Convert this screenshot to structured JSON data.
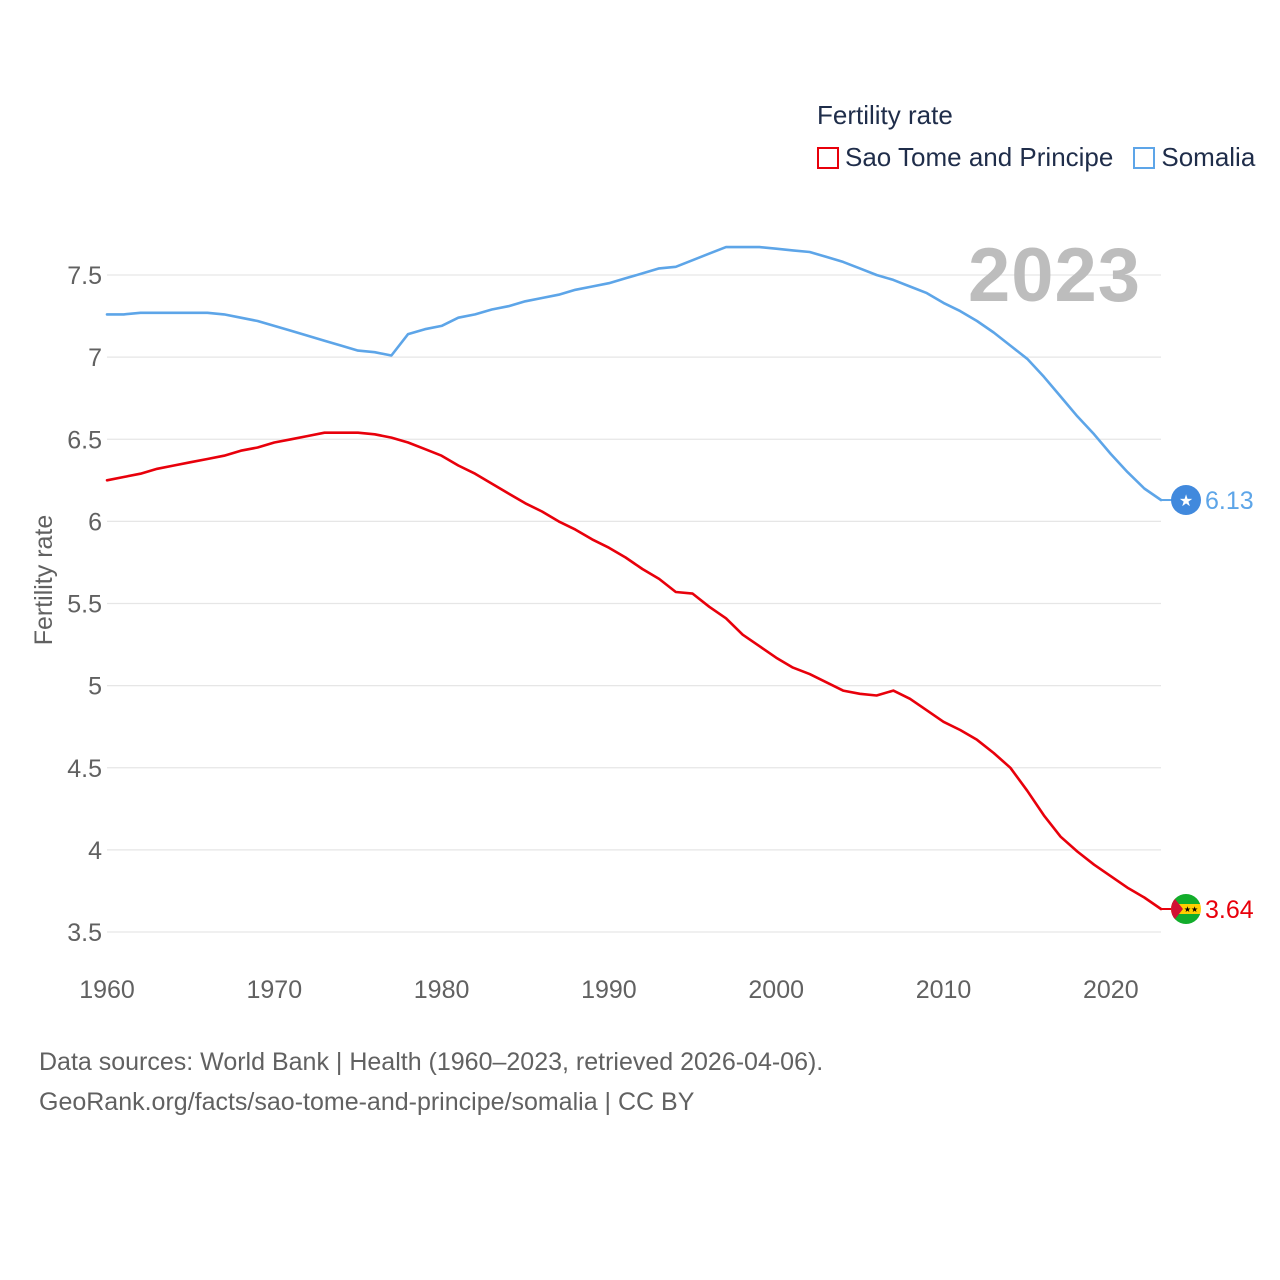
{
  "legend": {
    "title": "Fertility rate",
    "items": [
      {
        "label": "Sao Tome and Principe",
        "color": "#e8000b"
      },
      {
        "label": "Somalia",
        "color": "#5da5e8"
      }
    ]
  },
  "year_label": "2023",
  "footer": {
    "line1": "Data sources: World Bank | Health (1960–2023, retrieved 2026-04-06).",
    "line2": "GeoRank.org/facts/sao-tome-and-principe/somalia | CC BY"
  },
  "chart_data": {
    "type": "line",
    "title": "Fertility rate",
    "xlabel": "",
    "ylabel": "Fertility rate",
    "xlim": [
      1960,
      2023
    ],
    "ylim": [
      3.5,
      7.75
    ],
    "x_ticks": [
      1960,
      1970,
      1980,
      1990,
      2000,
      2010,
      2020
    ],
    "y_ticks": [
      3.5,
      4,
      4.5,
      5,
      5.5,
      6,
      6.5,
      7,
      7.5
    ],
    "y_tick_labels": [
      "3.5",
      "4",
      "4.5",
      "5",
      "5.5",
      "6",
      "6.5",
      "7",
      "7.5"
    ],
    "x_tick_labels": [
      "1960",
      "1970",
      "1980",
      "1990",
      "2000",
      "2010",
      "2020"
    ],
    "grid": true,
    "x": [
      1960,
      1961,
      1962,
      1963,
      1964,
      1965,
      1966,
      1967,
      1968,
      1969,
      1970,
      1971,
      1972,
      1973,
      1974,
      1975,
      1976,
      1977,
      1978,
      1979,
      1980,
      1981,
      1982,
      1983,
      1984,
      1985,
      1986,
      1987,
      1988,
      1989,
      1990,
      1991,
      1992,
      1993,
      1994,
      1995,
      1996,
      1997,
      1998,
      1999,
      2000,
      2001,
      2002,
      2003,
      2004,
      2005,
      2006,
      2007,
      2008,
      2009,
      2010,
      2011,
      2012,
      2013,
      2014,
      2015,
      2016,
      2017,
      2018,
      2019,
      2020,
      2021,
      2022,
      2023
    ],
    "series": [
      {
        "name": "Sao Tome and Principe",
        "color": "#e8000b",
        "end_label": "3.64",
        "values": [
          6.25,
          6.27,
          6.29,
          6.32,
          6.34,
          6.36,
          6.38,
          6.4,
          6.43,
          6.45,
          6.48,
          6.5,
          6.52,
          6.54,
          6.54,
          6.54,
          6.53,
          6.51,
          6.48,
          6.44,
          6.4,
          6.34,
          6.29,
          6.23,
          6.17,
          6.11,
          6.06,
          6.0,
          5.95,
          5.89,
          5.84,
          5.78,
          5.71,
          5.65,
          5.57,
          5.56,
          5.48,
          5.41,
          5.31,
          5.24,
          5.17,
          5.11,
          5.07,
          5.02,
          4.97,
          4.95,
          4.94,
          4.97,
          4.92,
          4.85,
          4.78,
          4.73,
          4.67,
          4.59,
          4.5,
          4.36,
          4.21,
          4.08,
          3.99,
          3.91,
          3.84,
          3.77,
          3.71,
          3.64
        ]
      },
      {
        "name": "Somalia",
        "color": "#5da5e8",
        "end_label": "6.13",
        "values": [
          7.26,
          7.26,
          7.27,
          7.27,
          7.27,
          7.27,
          7.27,
          7.26,
          7.24,
          7.22,
          7.19,
          7.16,
          7.13,
          7.1,
          7.07,
          7.04,
          7.03,
          7.01,
          7.14,
          7.17,
          7.19,
          7.24,
          7.26,
          7.29,
          7.31,
          7.34,
          7.36,
          7.38,
          7.41,
          7.43,
          7.45,
          7.48,
          7.51,
          7.54,
          7.55,
          7.59,
          7.63,
          7.67,
          7.67,
          7.67,
          7.66,
          7.65,
          7.64,
          7.61,
          7.58,
          7.54,
          7.5,
          7.47,
          7.43,
          7.39,
          7.33,
          7.28,
          7.22,
          7.15,
          7.07,
          6.99,
          6.88,
          6.76,
          6.64,
          6.53,
          6.41,
          6.3,
          6.2,
          6.13
        ]
      }
    ]
  }
}
